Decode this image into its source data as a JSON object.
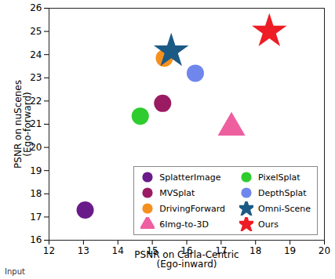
{
  "chart_data": {
    "type": "scatter",
    "x_label": "PSNR on Carla-Centric\n(Ego-inward)",
    "y_label": "PSNR on nuScenes\n(Ego-forward)",
    "annotations": [
      "Input"
    ],
    "xlim": [
      12,
      20
    ],
    "xticks": [
      12,
      13,
      14,
      15,
      16,
      17,
      18,
      19,
      20
    ],
    "ylim": [
      16,
      26
    ],
    "yticks": [
      16,
      17,
      18,
      19,
      20,
      21,
      22,
      23,
      24,
      25,
      26
    ],
    "grid": false,
    "legend": "lower right",
    "series": [
      {
        "name": "SplatterImage",
        "color": "#6a1b8a",
        "marker": "circle",
        "values": [
          [
            13.05,
            17.3
          ]
        ]
      },
      {
        "name": "MVSplat",
        "color": "#9b1b63",
        "marker": "circle",
        "values": [
          [
            15.3,
            21.9
          ]
        ]
      },
      {
        "name": "DrivingForward",
        "color": "#f5901e",
        "marker": "circle",
        "values": [
          [
            15.35,
            23.85
          ]
        ]
      },
      {
        "name": "6Img-to-3D",
        "color": "#ee5fa0",
        "marker": "triangle",
        "values": [
          [
            17.3,
            20.85
          ]
        ]
      },
      {
        "name": "PixelSplat",
        "color": "#2ecc2e",
        "marker": "circle",
        "values": [
          [
            14.65,
            21.35
          ]
        ]
      },
      {
        "name": "DepthSplat",
        "color": "#6f86ec",
        "marker": "circle",
        "values": [
          [
            16.25,
            23.2
          ]
        ]
      },
      {
        "name": "Omni-Scene",
        "color": "#1b5a85",
        "marker": "star",
        "values": [
          [
            15.55,
            24.15
          ]
        ]
      },
      {
        "name": "Ours",
        "color": "#ee1c24",
        "marker": "star",
        "values": [
          [
            18.4,
            25.0
          ]
        ]
      }
    ]
  }
}
